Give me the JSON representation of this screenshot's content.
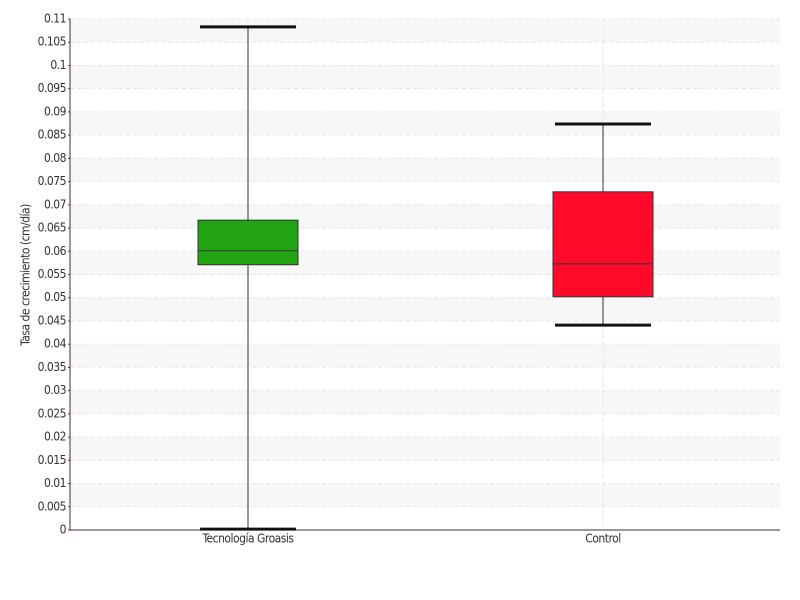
{
  "chart_data": {
    "type": "box",
    "y_label": "Tasa de crecimiento (cm/día)",
    "categories": [
      "Tecnología Groasis",
      "Control"
    ],
    "min": [
      0.0002,
      0.0441
    ],
    "q1": [
      0.0571,
      0.0502
    ],
    "median": [
      0.0601,
      0.0573
    ],
    "q3": [
      0.0667,
      0.0728
    ],
    "max": [
      0.1083,
      0.0874
    ],
    "colors": [
      "#22a312",
      "#ff0a2a"
    ],
    "ylim": [
      0,
      0.11
    ],
    "yticks": [
      0,
      0.005,
      0.01,
      0.015,
      0.02,
      0.025,
      0.03,
      0.035,
      0.04,
      0.045,
      0.05,
      0.055,
      0.06,
      0.065,
      0.07,
      0.075,
      0.08,
      0.085,
      0.09,
      0.095,
      0.1,
      0.105,
      0.11
    ],
    "grid": true
  }
}
